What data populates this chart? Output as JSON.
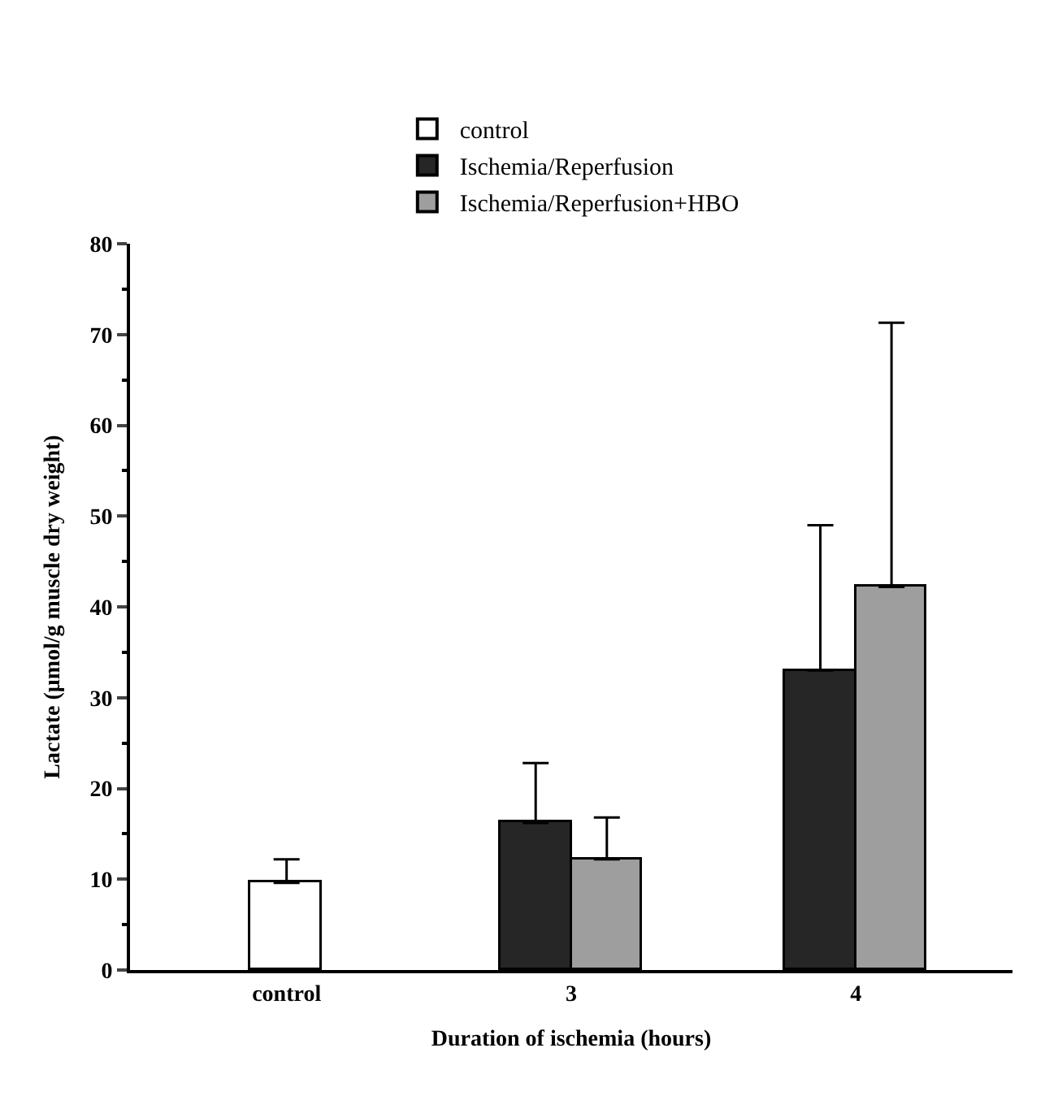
{
  "chart_data": {
    "type": "bar",
    "categories": [
      "control",
      "3",
      "4"
    ],
    "xlabel": "Duration of ischemia (hours)",
    "ylabel": "Lactate (μmol/g muscle dry weight)",
    "ylim": [
      0,
      80
    ],
    "yticks": [
      0,
      10,
      20,
      30,
      40,
      50,
      60,
      70,
      80
    ],
    "legend": "top",
    "series": [
      {
        "name": "control",
        "color": "#ffffff",
        "values": [
          9.6,
          null,
          null
        ],
        "errors": [
          [
            9.6,
            12.2
          ],
          null,
          null
        ]
      },
      {
        "name": "Ischemia/Reperfusion",
        "color": "#262626",
        "values": [
          null,
          16.2,
          33
        ],
        "errors": [
          null,
          [
            16.2,
            22.8
          ],
          [
            33,
            49
          ]
        ]
      },
      {
        "name": "Ischemia/Reperfusion+HBO",
        "color": "#9e9e9e",
        "values": [
          null,
          12.2,
          42.2
        ],
        "errors": [
          null,
          [
            12.2,
            16.8
          ],
          [
            42.2,
            71.3
          ]
        ]
      }
    ]
  }
}
